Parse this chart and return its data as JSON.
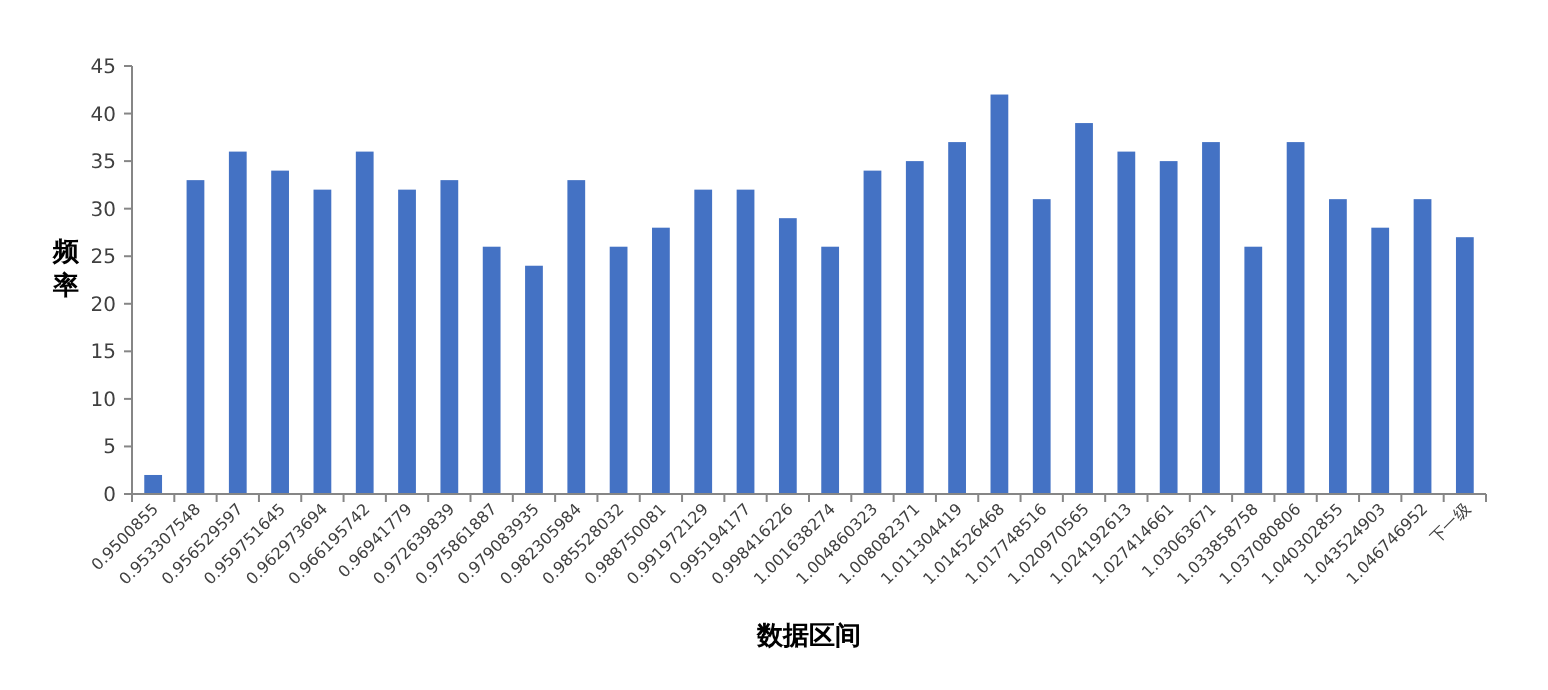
{
  "chart_data": {
    "type": "bar",
    "xlabel": "数据区间",
    "ylabel": "频率",
    "categories": [
      "0.9500855",
      "0.953307548",
      "0.956529597",
      "0.959751645",
      "0.962973694",
      "0.966195742",
      "0.96941779",
      "0.972639839",
      "0.975861887",
      "0.979083935",
      "0.982305984",
      "0.985528032",
      "0.988750081",
      "0.991972129",
      "0.995194177",
      "0.998416226",
      "1.001638274",
      "1.004860323",
      "1.008082371",
      "1.011304419",
      "1.014526468",
      "1.017748516",
      "1.020970565",
      "1.024192613",
      "1.027414661",
      "1.03063671",
      "1.033858758",
      "1.037080806",
      "1.040302855",
      "1.043524903",
      "1.046746952",
      "下一级"
    ],
    "values": [
      2,
      33,
      36,
      34,
      32,
      36,
      32,
      33,
      26,
      24,
      33,
      26,
      28,
      32,
      32,
      29,
      26,
      34,
      35,
      37,
      42,
      31,
      39,
      36,
      35,
      37,
      26,
      37,
      31,
      28,
      31,
      27
    ],
    "color": "#4472c4",
    "ylim": [
      0,
      45
    ],
    "yticks": [
      0,
      5,
      10,
      15,
      20,
      25,
      30,
      35,
      40,
      45
    ],
    "grid": false
  }
}
